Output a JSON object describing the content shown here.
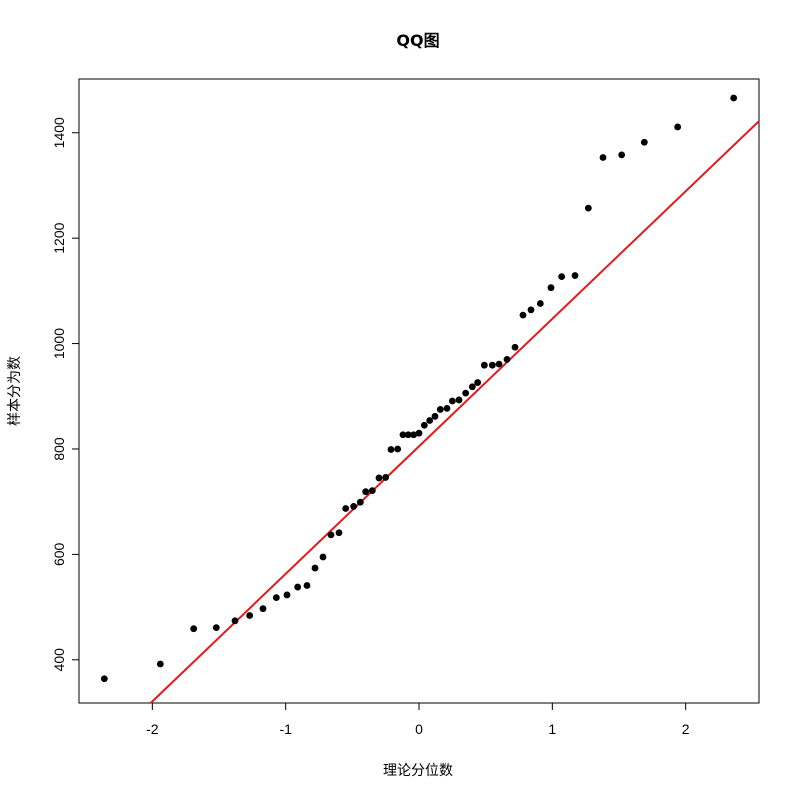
{
  "chart_data": {
    "type": "scatter",
    "title": "QQ图",
    "xlabel": "理论分位数",
    "ylabel": "样本分为数",
    "xlim": [
      -2.55,
      2.55
    ],
    "ylim": [
      318,
      1502
    ],
    "x_ticks": [
      -2,
      -1,
      0,
      1,
      2
    ],
    "x_tick_labels": [
      "-2",
      "-1",
      "0",
      "1",
      "2"
    ],
    "y_ticks": [
      400,
      600,
      800,
      1000,
      1200,
      1400
    ],
    "y_tick_labels": [
      "400",
      "600",
      "800",
      "1000",
      "1200",
      "1400"
    ],
    "grid": false,
    "legend": "none",
    "point_color": "#000000",
    "line_color": "#e31a1c",
    "reference_line": {
      "intercept": 805,
      "slope": 242
    },
    "points": [
      {
        "x": -2.36,
        "y": 364
      },
      {
        "x": -1.94,
        "y": 392
      },
      {
        "x": -1.69,
        "y": 459
      },
      {
        "x": -1.52,
        "y": 461
      },
      {
        "x": -1.38,
        "y": 474
      },
      {
        "x": -1.27,
        "y": 484
      },
      {
        "x": -1.17,
        "y": 497
      },
      {
        "x": -1.07,
        "y": 518
      },
      {
        "x": -0.99,
        "y": 523
      },
      {
        "x": -0.91,
        "y": 538
      },
      {
        "x": -0.84,
        "y": 541
      },
      {
        "x": -0.78,
        "y": 574
      },
      {
        "x": -0.72,
        "y": 595
      },
      {
        "x": -0.66,
        "y": 637
      },
      {
        "x": -0.6,
        "y": 641
      },
      {
        "x": -0.55,
        "y": 687
      },
      {
        "x": -0.49,
        "y": 691
      },
      {
        "x": -0.44,
        "y": 699
      },
      {
        "x": -0.4,
        "y": 719
      },
      {
        "x": -0.35,
        "y": 721
      },
      {
        "x": -0.3,
        "y": 745
      },
      {
        "x": -0.25,
        "y": 746
      },
      {
        "x": -0.21,
        "y": 799
      },
      {
        "x": -0.16,
        "y": 800
      },
      {
        "x": -0.12,
        "y": 827
      },
      {
        "x": -0.08,
        "y": 827
      },
      {
        "x": -0.04,
        "y": 827
      },
      {
        "x": 0.0,
        "y": 830
      },
      {
        "x": 0.04,
        "y": 845
      },
      {
        "x": 0.08,
        "y": 854
      },
      {
        "x": 0.12,
        "y": 862
      },
      {
        "x": 0.16,
        "y": 875
      },
      {
        "x": 0.21,
        "y": 877
      },
      {
        "x": 0.25,
        "y": 891
      },
      {
        "x": 0.3,
        "y": 893
      },
      {
        "x": 0.35,
        "y": 906
      },
      {
        "x": 0.4,
        "y": 918
      },
      {
        "x": 0.44,
        "y": 926
      },
      {
        "x": 0.49,
        "y": 959
      },
      {
        "x": 0.55,
        "y": 959
      },
      {
        "x": 0.6,
        "y": 961
      },
      {
        "x": 0.66,
        "y": 970
      },
      {
        "x": 0.72,
        "y": 993
      },
      {
        "x": 0.78,
        "y": 1054
      },
      {
        "x": 0.84,
        "y": 1064
      },
      {
        "x": 0.91,
        "y": 1076
      },
      {
        "x": 0.99,
        "y": 1106
      },
      {
        "x": 1.07,
        "y": 1127
      },
      {
        "x": 1.17,
        "y": 1129
      },
      {
        "x": 1.27,
        "y": 1257
      },
      {
        "x": 1.38,
        "y": 1353
      },
      {
        "x": 1.52,
        "y": 1358
      },
      {
        "x": 1.69,
        "y": 1382
      },
      {
        "x": 1.94,
        "y": 1411
      },
      {
        "x": 2.36,
        "y": 1466
      }
    ]
  }
}
